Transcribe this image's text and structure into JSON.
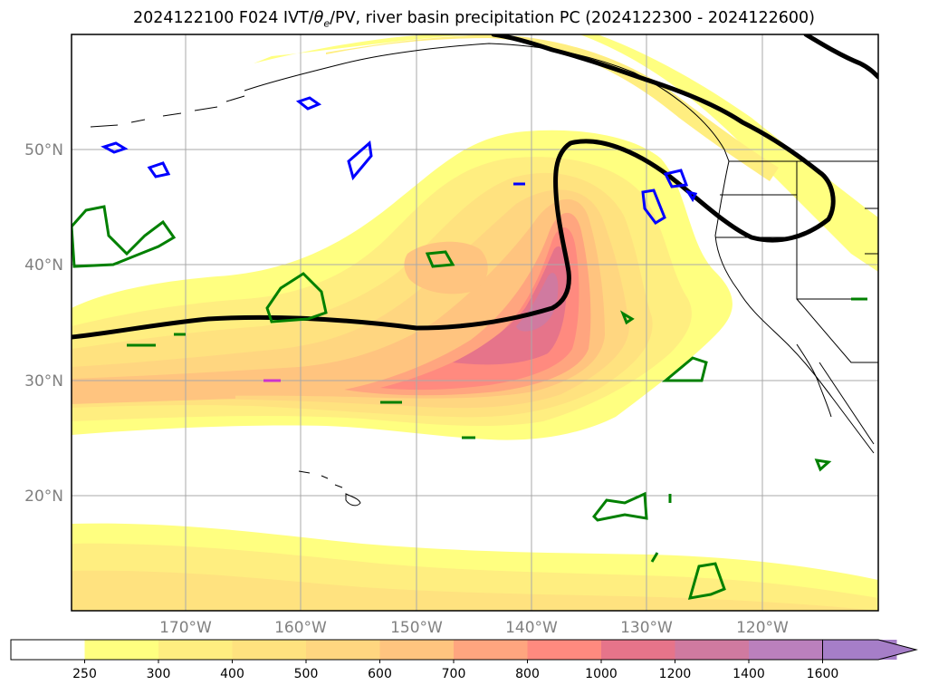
{
  "title": {
    "prefix": "2024122100 F024 IVT/",
    "theta_symbol": "θ",
    "theta_sub": "e",
    "suffix": "/PV, river basin precipitation PC (2024122300 - 2024122600)"
  },
  "map": {
    "lon_ticks": [
      "170°W",
      "160°W",
      "150°W",
      "140°W",
      "130°W",
      "120°W"
    ],
    "lat_ticks": [
      "50°N",
      "40°N",
      "30°N",
      "20°N"
    ],
    "gridlines": true
  },
  "colorbar": {
    "extend": "max",
    "levels": [
      "250",
      "300",
      "400",
      "500",
      "600",
      "700",
      "800",
      "1000",
      "1200",
      "1400",
      "1600"
    ],
    "colors": [
      "#ffffff",
      "#ffff80",
      "#ffee80",
      "#ffe27f",
      "#ffd680",
      "#ffc47f",
      "#ffa57f",
      "#ff8a7f",
      "#e6748a",
      "#d07aa0",
      "#bb80bd",
      "#a67ec8"
    ]
  },
  "colors": {
    "theta_e_contour": "#000000",
    "pv_positive": "#0000ff",
    "pv_negative": "#008000",
    "pv_magenta": "#cc33cc",
    "grid": "#a9a9a9",
    "coastline": "#000000"
  }
}
